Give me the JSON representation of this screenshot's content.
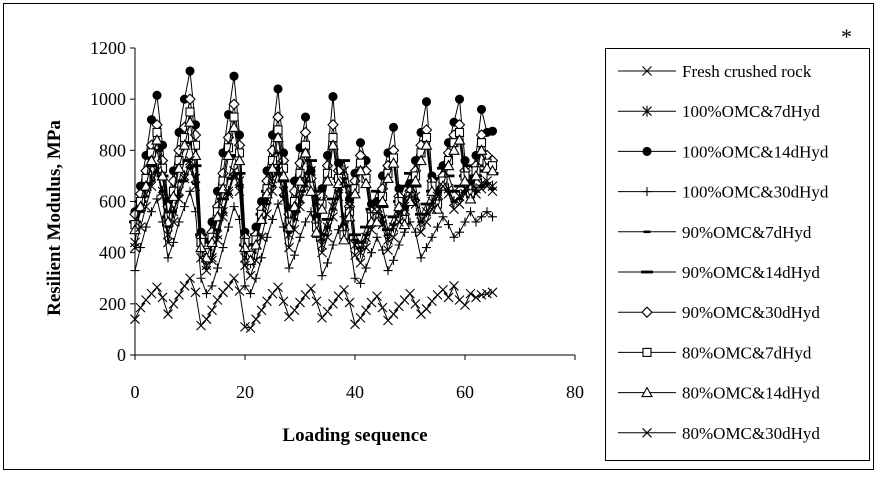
{
  "chart_data": {
    "type": "line",
    "title": "",
    "xlabel": "Loading sequence",
    "ylabel": "Resilient Modulus, MPa",
    "xlim": [
      0,
      80
    ],
    "ylim": [
      0,
      1200
    ],
    "xticks": [
      0,
      20,
      40,
      60,
      80
    ],
    "yticks": [
      0,
      200,
      400,
      600,
      800,
      1000,
      1200
    ],
    "grid": false,
    "legend_position": "right",
    "corner_mark": "*",
    "series": [
      {
        "name": "Fresh crushed rock",
        "marker": "x",
        "y": [
          140,
          185,
          215,
          240,
          265,
          225,
          160,
          200,
          235,
          270,
          300,
          245,
          115,
          140,
          175,
          215,
          245,
          270,
          300,
          250,
          110,
          105,
          140,
          175,
          210,
          240,
          265,
          210,
          150,
          175,
          205,
          235,
          260,
          210,
          145,
          170,
          200,
          230,
          255,
          205,
          120,
          145,
          175,
          205,
          230,
          185,
          135,
          160,
          190,
          215,
          240,
          200,
          160,
          180,
          210,
          235,
          255,
          225,
          270,
          215,
          195,
          240,
          225,
          235,
          240,
          245
        ]
      },
      {
        "name": "100%OMC&7dHyd",
        "marker": "asterisk",
        "y": [
          440,
          580,
          650,
          700,
          730,
          640,
          470,
          560,
          640,
          700,
          750,
          690,
          420,
          350,
          380,
          470,
          560,
          640,
          720,
          680,
          380,
          360,
          430,
          540,
          610,
          690,
          740,
          640,
          470,
          540,
          610,
          680,
          720,
          600,
          430,
          500,
          580,
          660,
          720,
          620,
          430,
          400,
          460,
          520,
          580,
          530,
          450,
          500,
          560,
          610,
          660,
          620,
          520,
          560,
          600,
          640,
          670,
          650,
          600,
          620,
          650,
          680,
          650,
          670,
          680,
          660
        ]
      },
      {
        "name": "100%OMC&14dHyd",
        "marker": "filled-circle",
        "y": [
          560,
          660,
          780,
          920,
          1015,
          820,
          600,
          720,
          870,
          1000,
          1110,
          900,
          480,
          440,
          520,
          640,
          790,
          940,
          1090,
          860,
          480,
          420,
          500,
          600,
          720,
          860,
          1040,
          790,
          570,
          680,
          810,
          930,
          720,
          540,
          650,
          780,
          1010,
          750,
          500,
          610,
          710,
          830,
          760,
          590,
          600,
          700,
          790,
          890,
          650,
          580,
          670,
          760,
          870,
          990,
          700,
          640,
          740,
          830,
          910,
          1000,
          760,
          680,
          780,
          960,
          870,
          875
        ]
      },
      {
        "name": "100%OMC&30dHyd",
        "marker": "plus",
        "y": [
          330,
          420,
          500,
          560,
          610,
          520,
          380,
          440,
          520,
          580,
          640,
          560,
          300,
          240,
          270,
          340,
          420,
          500,
          580,
          530,
          270,
          240,
          300,
          380,
          460,
          530,
          590,
          500,
          340,
          390,
          460,
          520,
          560,
          460,
          310,
          360,
          430,
          490,
          540,
          450,
          300,
          280,
          340,
          400,
          460,
          410,
          330,
          370,
          430,
          480,
          520,
          480,
          380,
          420,
          460,
          500,
          540,
          510,
          460,
          480,
          520,
          560,
          520,
          540,
          560,
          540
        ]
      },
      {
        "name": "90%OMC&7dHyd",
        "marker": "dash",
        "y": [
          480,
          560,
          620,
          680,
          720,
          640,
          500,
          560,
          620,
          680,
          730,
          670,
          460,
          400,
          430,
          490,
          560,
          630,
          700,
          660,
          420,
          390,
          450,
          520,
          590,
          660,
          710,
          620,
          480,
          530,
          600,
          660,
          700,
          590,
          450,
          500,
          570,
          640,
          690,
          600,
          450,
          420,
          470,
          530,
          590,
          540,
          470,
          510,
          560,
          610,
          650,
          610,
          520,
          550,
          590,
          630,
          660,
          640,
          600,
          610,
          640,
          670,
          640,
          660,
          670,
          650
        ]
      },
      {
        "name": "90%OMC&14dHyd",
        "marker": "long-dash",
        "y": [
          520,
          600,
          670,
          740,
          800,
          700,
          540,
          610,
          680,
          760,
          830,
          740,
          470,
          410,
          450,
          530,
          610,
          690,
          780,
          710,
          430,
          400,
          470,
          550,
          640,
          720,
          790,
          680,
          500,
          560,
          640,
          710,
          760,
          640,
          470,
          530,
          610,
          690,
          760,
          660,
          470,
          440,
          500,
          570,
          640,
          580,
          490,
          540,
          600,
          660,
          710,
          660,
          550,
          590,
          640,
          690,
          730,
          700,
          640,
          660,
          700,
          740,
          700,
          720,
          740,
          710
        ]
      },
      {
        "name": "90%OMC&30dHyd",
        "marker": "open-diamond",
        "y": [
          550,
          630,
          720,
          820,
          900,
          760,
          580,
          680,
          800,
          890,
          1000,
          860,
          460,
          420,
          480,
          580,
          710,
          850,
          980,
          820,
          460,
          410,
          470,
          570,
          680,
          800,
          930,
          760,
          550,
          640,
          750,
          870,
          690,
          520,
          620,
          740,
          900,
          720,
          490,
          580,
          680,
          780,
          720,
          560,
          560,
          650,
          740,
          800,
          620,
          550,
          640,
          720,
          820,
          880,
          680,
          610,
          700,
          790,
          860,
          900,
          720,
          650,
          740,
          860,
          780,
          760
        ]
      },
      {
        "name": "80%OMC&7dHyd",
        "marker": "open-square",
        "y": [
          510,
          600,
          690,
          790,
          870,
          730,
          540,
          640,
          760,
          850,
          950,
          820,
          440,
          400,
          460,
          560,
          680,
          810,
          930,
          790,
          440,
          390,
          450,
          550,
          650,
          760,
          880,
          730,
          520,
          600,
          710,
          820,
          660,
          500,
          590,
          710,
          850,
          690,
          470,
          560,
          650,
          750,
          690,
          540,
          540,
          620,
          710,
          770,
          600,
          530,
          620,
          700,
          790,
          850,
          660,
          590,
          680,
          760,
          830,
          870,
          700,
          630,
          720,
          830,
          750,
          740
        ]
      },
      {
        "name": "80%OMC&14dHyd",
        "marker": "open-triangle",
        "y": [
          490,
          580,
          660,
          760,
          840,
          700,
          520,
          620,
          730,
          820,
          910,
          780,
          420,
          380,
          440,
          540,
          650,
          780,
          890,
          760,
          420,
          370,
          430,
          530,
          630,
          730,
          850,
          700,
          500,
          580,
          680,
          790,
          640,
          480,
          570,
          680,
          820,
          670,
          450,
          540,
          630,
          720,
          670,
          520,
          520,
          600,
          690,
          750,
          580,
          510,
          600,
          680,
          760,
          820,
          640,
          570,
          660,
          740,
          800,
          840,
          680,
          610,
          700,
          800,
          730,
          720
        ]
      },
      {
        "name": "80%OMC&30dHyd",
        "marker": "x",
        "y": [
          420,
          500,
          580,
          660,
          720,
          620,
          440,
          520,
          610,
          690,
          760,
          660,
          380,
          330,
          370,
          450,
          540,
          630,
          720,
          640,
          350,
          310,
          370,
          460,
          550,
          640,
          720,
          610,
          420,
          490,
          580,
          670,
          720,
          600,
          400,
          460,
          540,
          620,
          680,
          580,
          390,
          360,
          420,
          490,
          560,
          510,
          410,
          460,
          520,
          580,
          630,
          590,
          480,
          520,
          570,
          620,
          660,
          630,
          570,
          590,
          630,
          670,
          630,
          650,
          660,
          640
        ]
      }
    ]
  }
}
